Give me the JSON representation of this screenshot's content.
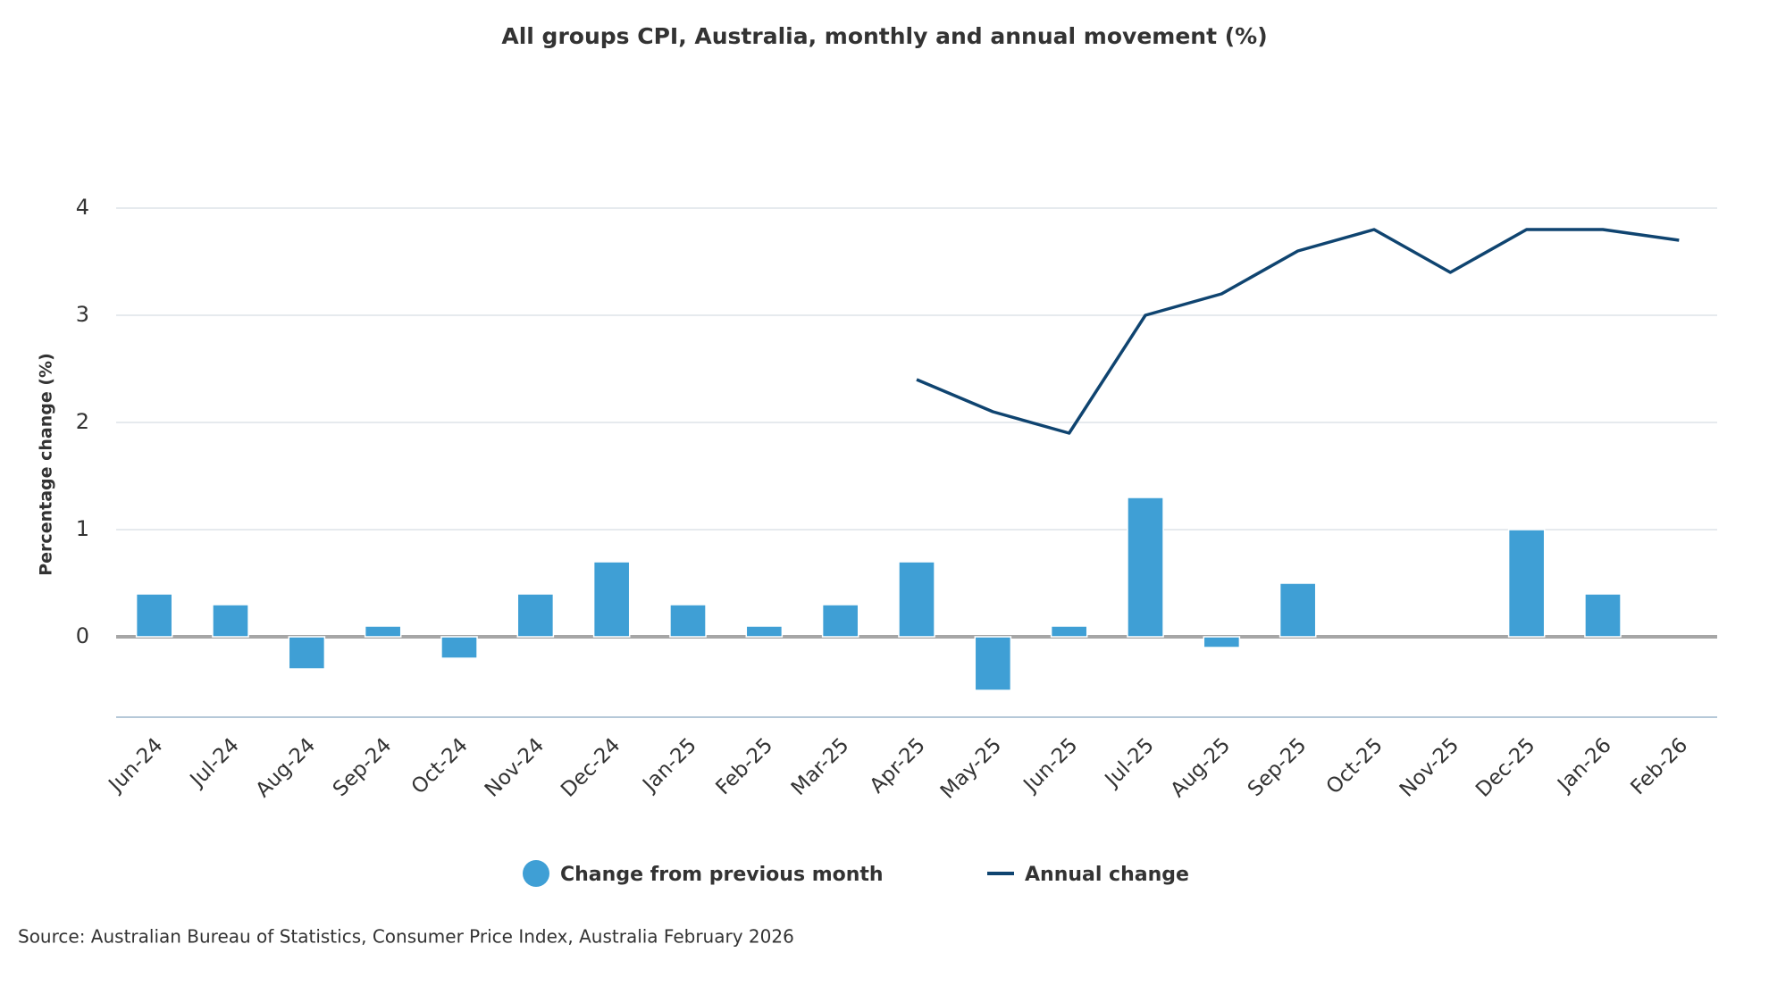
{
  "chart_data": {
    "type": "bar-line",
    "title": "All groups CPI, Australia, monthly and annual movement (%)",
    "y_label": "Percentage change (%)",
    "source": "Source: Australian Bureau of Statistics, Consumer Price Index, Australia February 2026",
    "categories": [
      "Jun-24",
      "Jul-24",
      "Aug-24",
      "Sep-24",
      "Oct-24",
      "Nov-24",
      "Dec-24",
      "Jan-25",
      "Feb-25",
      "Mar-25",
      "Apr-25",
      "May-25",
      "Jun-25",
      "Jul-25",
      "Aug-25",
      "Sep-25",
      "Oct-25",
      "Nov-25",
      "Dec-25",
      "Jan-26",
      "Feb-26"
    ],
    "series": [
      {
        "name": "Change from previous month",
        "type": "bar",
        "color": "#3f9fd5",
        "values": [
          0.4,
          0.3,
          -0.3,
          0.1,
          -0.2,
          0.4,
          0.7,
          0.3,
          0.1,
          0.3,
          0.7,
          -0.5,
          0.1,
          1.3,
          -0.1,
          0.5,
          0.0,
          0.0,
          1.0,
          0.4,
          0.0
        ]
      },
      {
        "name": "Annual change",
        "type": "line",
        "color": "#0f4470",
        "values": [
          null,
          null,
          null,
          null,
          null,
          null,
          null,
          null,
          null,
          null,
          2.4,
          2.1,
          1.9,
          3.0,
          3.2,
          3.6,
          3.8,
          3.4,
          3.8,
          3.8,
          3.7
        ]
      }
    ],
    "ylim": [
      -0.75,
      4
    ],
    "yticks": [
      0,
      1,
      2,
      3,
      4
    ],
    "grid": true,
    "legend": "bottom"
  }
}
